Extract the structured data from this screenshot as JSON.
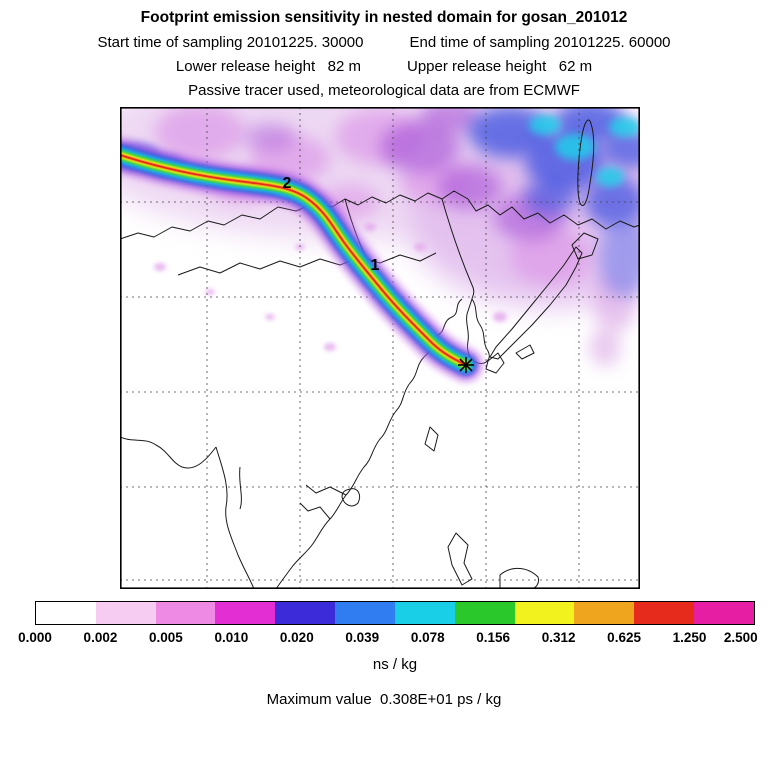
{
  "header": {
    "title": "Footprint emission sensitivity in nested domain for gosan_201012",
    "sampling_start": "Start time of sampling 20101225. 30000",
    "sampling_end": "End time of sampling 20101225. 60000",
    "lower_release_height": "Lower release height   82 m",
    "upper_release_height": "Upper release height   62 m",
    "tracer_line": "Passive tracer used, meteorological data are from ECMWF"
  },
  "chart_data": {
    "type": "heatmap",
    "title": "Footprint emission sensitivity in nested domain for gosan_201012",
    "station": "gosan_201012",
    "sampling": {
      "start": "20101225. 30000",
      "end": "20101225. 60000"
    },
    "release_heights_m": {
      "lower": 82,
      "upper": 62
    },
    "tracer": "Passive tracer used, meteorological data are from ECMWF",
    "units": "ns / kg",
    "colorbar": {
      "levels": [
        "0.000",
        "0.002",
        "0.005",
        "0.010",
        "0.020",
        "0.039",
        "0.078",
        "0.156",
        "0.312",
        "0.625",
        "1.250",
        "2.500"
      ],
      "colors": [
        "#ffffff",
        "#f7ccf2",
        "#ef8ae4",
        "#e22ed2",
        "#3b2bd9",
        "#2f7df0",
        "#19cfe8",
        "#2bc82b",
        "#f2f21e",
        "#f0a51e",
        "#e62a1c",
        "#e61ea4"
      ],
      "label": "ns / kg"
    },
    "max_value_label": "Maximum value  0.308E+01 ps / kg",
    "annotations": [
      {
        "text": "2"
      },
      {
        "text": "1"
      }
    ],
    "receptor_marker": "star",
    "legend_position": "bottom",
    "grid": "dashed"
  }
}
